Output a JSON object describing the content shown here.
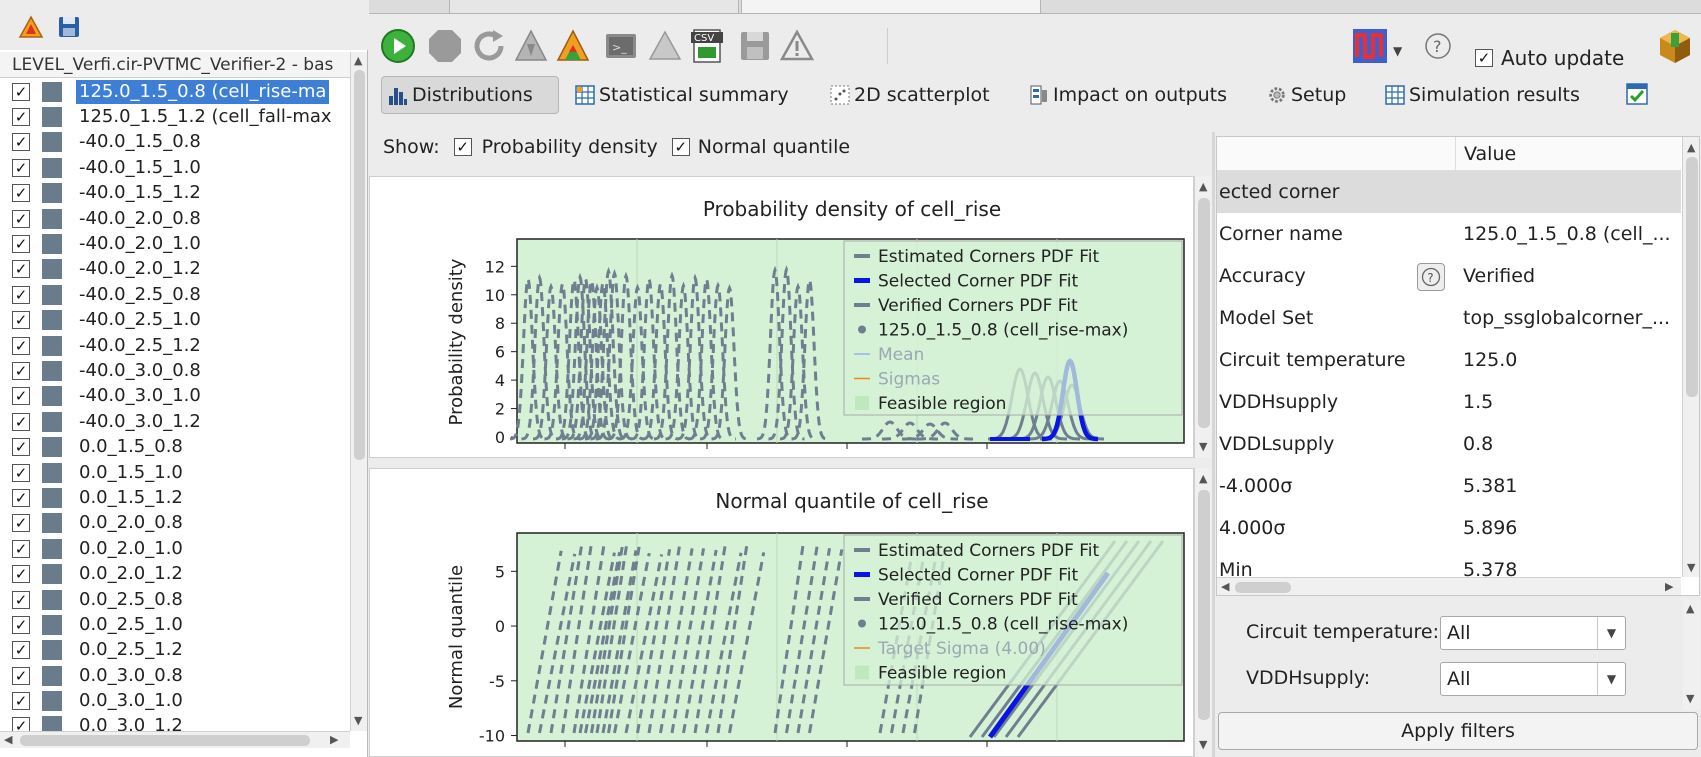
{
  "left_panel": {
    "header": "LEVEL_Verfi.cir-PVTMC_Verifier-2 - bas",
    "corners": [
      {
        "label": "125.0_1.5_0.8 (cell_rise-ma",
        "selected": true
      },
      {
        "label": "125.0_1.5_1.2 (cell_fall-max"
      },
      {
        "label": "-40.0_1.5_0.8"
      },
      {
        "label": "-40.0_1.5_1.0"
      },
      {
        "label": "-40.0_1.5_1.2"
      },
      {
        "label": "-40.0_2.0_0.8"
      },
      {
        "label": "-40.0_2.0_1.0"
      },
      {
        "label": "-40.0_2.0_1.2"
      },
      {
        "label": "-40.0_2.5_0.8"
      },
      {
        "label": "-40.0_2.5_1.0"
      },
      {
        "label": "-40.0_2.5_1.2"
      },
      {
        "label": "-40.0_3.0_0.8"
      },
      {
        "label": "-40.0_3.0_1.0"
      },
      {
        "label": "-40.0_3.0_1.2"
      },
      {
        "label": "0.0_1.5_0.8"
      },
      {
        "label": "0.0_1.5_1.0"
      },
      {
        "label": "0.0_1.5_1.2"
      },
      {
        "label": "0.0_2.0_0.8"
      },
      {
        "label": "0.0_2.0_1.0"
      },
      {
        "label": "0.0_2.0_1.2"
      },
      {
        "label": "0.0_2.5_0.8"
      },
      {
        "label": "0.0_2.5_1.0"
      },
      {
        "label": "0.0_2.5_1.2"
      },
      {
        "label": "0.0_3.0_0.8"
      },
      {
        "label": "0.0_3.0_1.0"
      },
      {
        "label": "0.0_3.0_1.2"
      }
    ],
    "check_mark": "✓"
  },
  "toolbar": {
    "auto_update_label": "Auto update",
    "csv_label": "CSV"
  },
  "view_tabs": [
    {
      "label": "Distributions",
      "icon": "histogram-icon",
      "active": true
    },
    {
      "label": "Statistical summary",
      "icon": "table-icon"
    },
    {
      "label": "2D scatterplot",
      "icon": "scatter-icon"
    },
    {
      "label": "Impact on outputs",
      "icon": "impact-icon"
    },
    {
      "label": "Setup",
      "icon": "gear-icon"
    },
    {
      "label": "Simulation results",
      "icon": "grid-icon"
    }
  ],
  "show_bar": {
    "label": "Show:",
    "probability_density": "Probability density",
    "normal_quantile": "Normal quantile"
  },
  "chart_data": [
    {
      "type": "line",
      "title": "Probability density of cell_rise",
      "ylabel": "Probability density",
      "yticks": [
        "12",
        "10",
        "8",
        "6",
        "4",
        "2",
        "0"
      ],
      "legend": [
        "Estimated Corners PDF Fit",
        "Selected Corner PDF Fit",
        "Verified Corners PDF Fit",
        "125.0_1.5_0.8 (cell_rise-max)",
        "Mean",
        "Sigmas",
        "Feasible region"
      ],
      "colors": {
        "estimated": "#6f7f8f",
        "selected": "#0a14e6",
        "mean": "#8fb4e6",
        "sigmas": "#e68a1a",
        "feasible": "#d6f2d6"
      }
    },
    {
      "type": "line",
      "title": "Normal quantile of cell_rise",
      "ylabel": "Normal quantile",
      "yticks": [
        "5",
        "0",
        "-5",
        "-10"
      ],
      "legend": [
        "Estimated Corners PDF Fit",
        "Selected Corner PDF Fit",
        "Verified Corners PDF Fit",
        "125.0_1.5_0.8 (cell_rise-max)",
        "Target Sigma (4.00)",
        "Feasible region"
      ],
      "colors": {
        "estimated": "#6f7f8f",
        "selected": "#0a14e6",
        "target": "#e68a1a",
        "feasible": "#d6f2d6"
      }
    }
  ],
  "properties": {
    "value_header": "Value",
    "section": "ected corner",
    "rows": [
      {
        "key": "Corner name",
        "value": "125.0_1.5_0.8 (cell_..."
      },
      {
        "key": "Accuracy",
        "value": "Verified"
      },
      {
        "key": "Model Set",
        "value": "top_ssglobalcorner_..."
      },
      {
        "key": "Circuit temperature",
        "value": "125.0"
      },
      {
        "key": "VDDHsupply",
        "value": "1.5"
      },
      {
        "key": "VDDLsupply",
        "value": "0.8"
      },
      {
        "key": "-4.000σ",
        "value": "5.381"
      },
      {
        "key": "4.000σ",
        "value": "5.896"
      },
      {
        "key": "Min",
        "value": "5.378"
      }
    ]
  },
  "filters": [
    {
      "label": "Circuit temperature:",
      "value": "All"
    },
    {
      "label": "VDDHsupply:",
      "value": "All"
    }
  ],
  "apply_filters_label": "Apply filters"
}
